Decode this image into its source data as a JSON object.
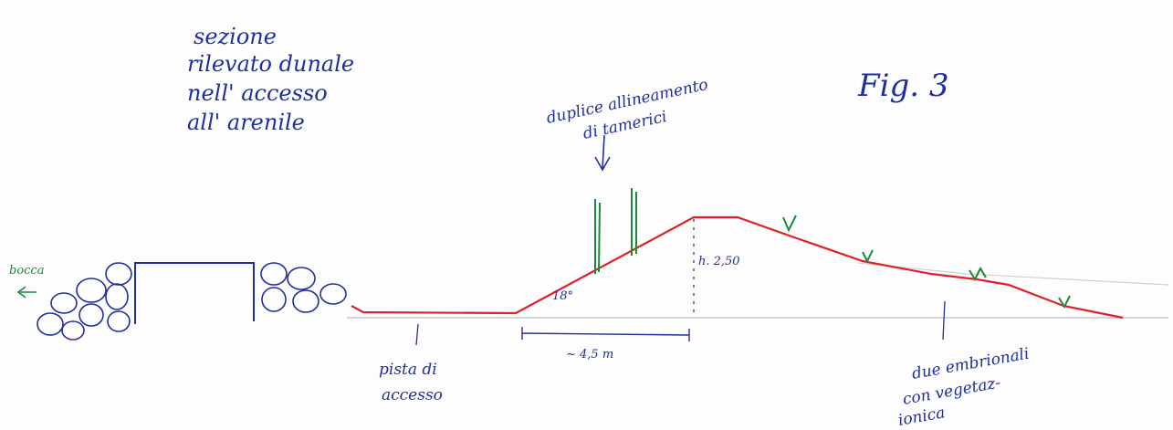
{
  "title": {
    "lines": [
      "sezione",
      "rilevato dunale",
      "nell' accesso",
      "all' arenile"
    ]
  },
  "figure_label": "Fig. 3",
  "labels": {
    "tamerici": [
      "duplice allineamento",
      "di tamerici"
    ],
    "bocca": "bocca",
    "pista": [
      "pista di",
      "accesso"
    ],
    "angle": "18°",
    "height": "h. 2,50",
    "width": "~ 4,5 m",
    "dune": [
      "due embrionali",
      "con vegetaz-",
      "ionica"
    ]
  }
}
